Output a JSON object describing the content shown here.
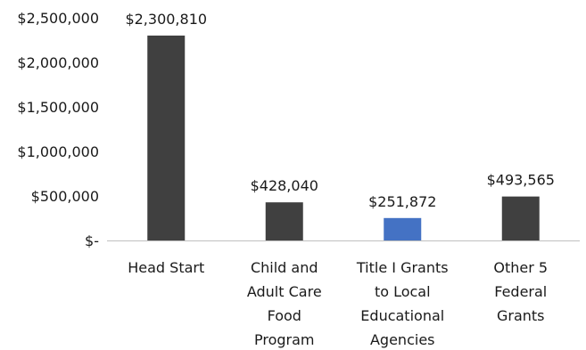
{
  "chart_data": {
    "type": "bar",
    "title": "",
    "xlabel": "",
    "ylabel": "",
    "categories": [
      [
        "Head Start"
      ],
      [
        "Child and",
        "Adult Care",
        "Food",
        "Program"
      ],
      [
        "Title I Grants",
        "to Local",
        "Educational",
        "Agencies"
      ],
      [
        "Other 5",
        "Federal",
        "Grants"
      ]
    ],
    "values": [
      2300810,
      428040,
      251872,
      493565
    ],
    "data_labels": [
      "$2,300,810",
      "$428,040",
      "$251,872",
      "$493,565"
    ],
    "bar_colors": [
      "#404040",
      "#404040",
      "#4472c4",
      "#404040"
    ],
    "ylim": [
      0,
      2500000
    ],
    "yticks": [
      0,
      500000,
      1000000,
      1500000,
      2000000,
      2500000
    ],
    "ytick_labels": [
      "$-",
      "$500,000",
      "$1,000,000",
      "$1,500,000",
      "$2,000,000",
      "$2,500,000"
    ],
    "grid": false,
    "legend": "none",
    "axis_color": "#bfbfbf"
  }
}
